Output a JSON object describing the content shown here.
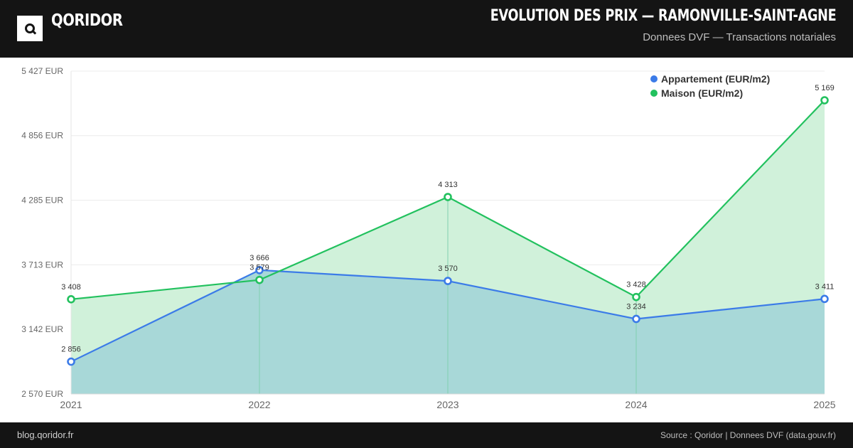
{
  "header": {
    "brand": "QORIDOR",
    "title": "EVOLUTION DES PRIX — RAMONVILLE-SAINT-AGNE",
    "subtitle": "Donnees DVF — Transactions notariales"
  },
  "footer": {
    "left": "blog.qoridor.fr",
    "right": "Source : Qoridor | Donnees DVF (data.gouv.fr)"
  },
  "chart_data": {
    "type": "area",
    "title": "",
    "xlabel": "",
    "ylabel": "",
    "x": [
      "2021",
      "2022",
      "2023",
      "2024",
      "2025"
    ],
    "ylim": [
      2570,
      5427
    ],
    "y_ticks": [
      2570,
      3142,
      3713,
      4285,
      4856,
      5427
    ],
    "y_tick_labels": [
      "2 570 EUR",
      "3 142 EUR",
      "3 713 EUR",
      "4 285 EUR",
      "4 856 EUR",
      "5 427 EUR"
    ],
    "grid": true,
    "legend_position": "top-right",
    "series": [
      {
        "name": "Appartement (EUR/m2)",
        "color": "#3b7be8",
        "fill": "#a8d8d8",
        "values": [
          2856,
          3666,
          3570,
          3234,
          3411
        ],
        "labels": [
          "2 856",
          "3 666",
          "3 570",
          "3 234",
          "3 411"
        ]
      },
      {
        "name": "Maison (EUR/m2)",
        "color": "#22c15e",
        "fill": "#d0f1da",
        "values": [
          3408,
          3579,
          4313,
          3428,
          5169
        ],
        "labels": [
          "3 408",
          "3 579",
          "4 313",
          "3 428",
          "5 169"
        ]
      }
    ]
  }
}
